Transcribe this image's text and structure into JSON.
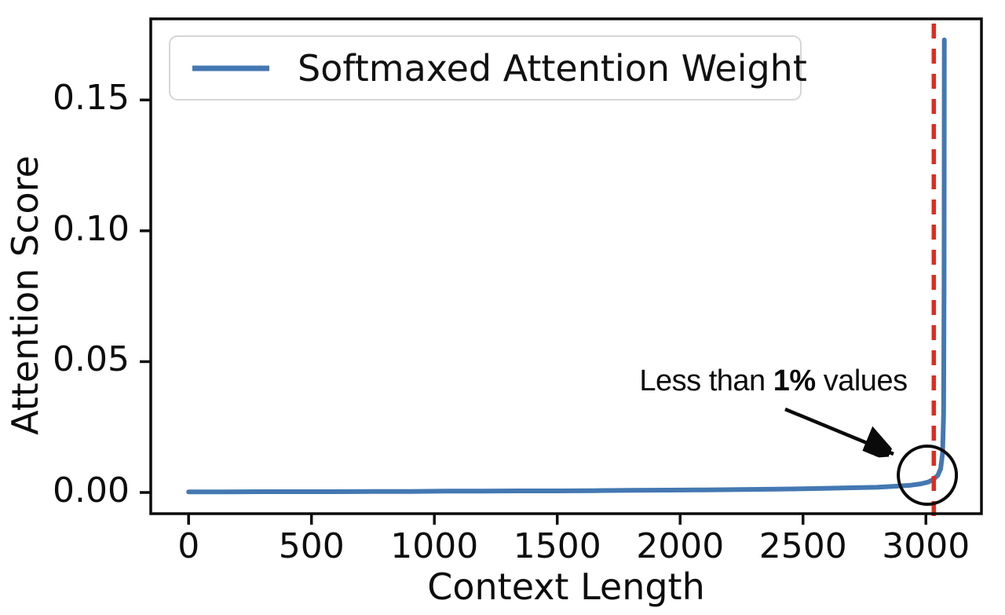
{
  "figure": {
    "background": "#ffffff",
    "axis_color": "#0c0c0c",
    "tick_color": "#0d0d0d"
  },
  "legend": {
    "label": "Softmaxed Attention Weight",
    "line_color": "#4478b2",
    "position": "upper-left"
  },
  "annotation": {
    "prefix": "Less than ",
    "bold": "1%",
    "suffix": " values"
  },
  "chart_data": {
    "type": "line",
    "title": "",
    "xlabel": "Context Length",
    "ylabel": "Attention Score",
    "xlim": [
      -154,
      3226
    ],
    "ylim": [
      -0.0081,
      0.181
    ],
    "xticks": [
      0,
      500,
      1000,
      1500,
      2000,
      2500,
      3000
    ],
    "xtick_labels": [
      "0",
      "500",
      "1000",
      "1500",
      "2000",
      "2500",
      "3000"
    ],
    "yticks": [
      0,
      0.05,
      0.1,
      0.15
    ],
    "ytick_labels": [
      "0.00",
      "0.05",
      "0.10",
      "0.15"
    ],
    "grid": false,
    "legend_position": "upper-left",
    "series": [
      {
        "name": "Softmaxed Attention Weight",
        "color": "#4478b2",
        "x": [
          0,
          150,
          300,
          450,
          600,
          750,
          900,
          1050,
          1200,
          1350,
          1500,
          1650,
          1800,
          1950,
          2100,
          2250,
          2400,
          2550,
          2700,
          2800,
          2880,
          2940,
          2980,
          3010,
          3030,
          3048,
          3060,
          3068,
          3072,
          3074,
          3075
        ],
        "y": [
          0.0002,
          0.0002,
          0.0003,
          0.0003,
          0.0003,
          0.0004,
          0.0004,
          0.0005,
          0.0005,
          0.0006,
          0.0006,
          0.0007,
          0.0008,
          0.0009,
          0.001,
          0.0011,
          0.0013,
          0.0015,
          0.0018,
          0.002,
          0.0024,
          0.0028,
          0.0033,
          0.004,
          0.005,
          0.0065,
          0.009,
          0.015,
          0.03,
          0.08,
          0.173
        ]
      }
    ],
    "vline": {
      "x": 3032,
      "color": "#e02b1f",
      "style": "dashed"
    },
    "annotation": {
      "text": "Less than 1% values",
      "bold_part": "1%",
      "circle_center": {
        "x": 3006,
        "y": 0.0066
      }
    }
  }
}
